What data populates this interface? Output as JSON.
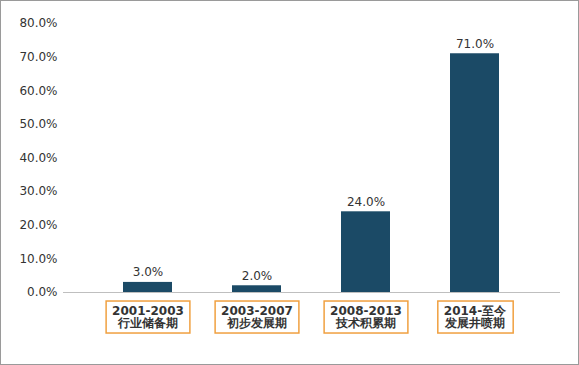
{
  "chart_data": {
    "type": "bar",
    "categories": [
      "2001-2003\n行业储备期",
      "2003-2007\n初步发展期",
      "2008-2013\n技术积累期",
      "2014-至今\n发展井喷期"
    ],
    "values": [
      3,
      2,
      24,
      71
    ],
    "value_labels": [
      "3.0%",
      "2.0%",
      "24.0%",
      "71.0%"
    ],
    "data_labels": true,
    "color": "#1b4a66",
    "ylim": [
      0,
      80
    ],
    "yticks": [
      {
        "value": 0,
        "label": "0.0%"
      },
      {
        "value": 10,
        "label": "10.0%"
      },
      {
        "value": 20,
        "label": "20.0%"
      },
      {
        "value": 30,
        "label": "30.0%"
      },
      {
        "value": 40,
        "label": "40.0%"
      },
      {
        "value": 50,
        "label": "50.0%"
      },
      {
        "value": 60,
        "label": "60.0%"
      },
      {
        "value": 70,
        "label": "70.0%"
      },
      {
        "value": 80,
        "label": "80.0%"
      }
    ],
    "grid": false
  }
}
